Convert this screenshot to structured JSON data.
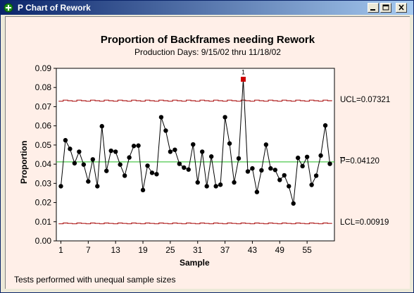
{
  "window": {
    "title": "P Chart of Rework"
  },
  "chart_data": {
    "type": "line",
    "title": "Proportion of Backframes needing Rework",
    "subtitle": "Production Days:  9/15/02 thru 11/18/02",
    "xlabel": "Sample",
    "ylabel": "Proportion",
    "footnote": "Tests performed with unequal sample sizes",
    "xlim": [
      0,
      61
    ],
    "ylim": [
      0,
      0.09
    ],
    "yticks": [
      "0.00",
      "0.01",
      "0.02",
      "0.03",
      "0.04",
      "0.05",
      "0.06",
      "0.07",
      "0.08",
      "0.09"
    ],
    "xticks": [
      "1",
      "7",
      "13",
      "19",
      "25",
      "31",
      "37",
      "43",
      "49",
      "55"
    ],
    "x": [
      1,
      2,
      3,
      4,
      5,
      6,
      7,
      8,
      9,
      10,
      11,
      12,
      13,
      14,
      15,
      16,
      17,
      18,
      19,
      20,
      21,
      22,
      23,
      24,
      25,
      26,
      27,
      28,
      29,
      30,
      31,
      32,
      33,
      34,
      35,
      36,
      37,
      38,
      39,
      40,
      41,
      42,
      43,
      44,
      45,
      46,
      47,
      48,
      49,
      50,
      51,
      52,
      53,
      54,
      55,
      56,
      57,
      58,
      59,
      60
    ],
    "values": [
      0.0285,
      0.0525,
      0.048,
      0.0405,
      0.0465,
      0.0398,
      0.031,
      0.0425,
      0.0285,
      0.0598,
      0.0365,
      0.047,
      0.0465,
      0.0398,
      0.034,
      0.0435,
      0.0495,
      0.0497,
      0.0265,
      0.0392,
      0.0355,
      0.0348,
      0.0645,
      0.0575,
      0.0465,
      0.0475,
      0.0402,
      0.0382,
      0.0372,
      0.0503,
      0.0305,
      0.0465,
      0.0285,
      0.044,
      0.0285,
      0.0293,
      0.0645,
      0.0508,
      0.0305,
      0.043,
      0.0843,
      0.0362,
      0.0378,
      0.0255,
      0.0368,
      0.0502,
      0.0378,
      0.037,
      0.0318,
      0.0342,
      0.0285,
      0.0195,
      0.0433,
      0.039,
      0.0438,
      0.0292,
      0.034,
      0.0445,
      0.0602,
      0.0402
    ],
    "flagged_point": {
      "x": 41,
      "label": "1",
      "color": "#cc0000"
    },
    "center_line": {
      "label": "P=0.04120",
      "value": 0.0412,
      "color": "#22bb22"
    },
    "ucl": {
      "label": "UCL=0.07321",
      "value": 0.07321,
      "color": "#b02020"
    },
    "lcl": {
      "label": "LCL=0.00919",
      "value": 0.00919,
      "color": "#b02020"
    },
    "series_color": "#000000"
  }
}
